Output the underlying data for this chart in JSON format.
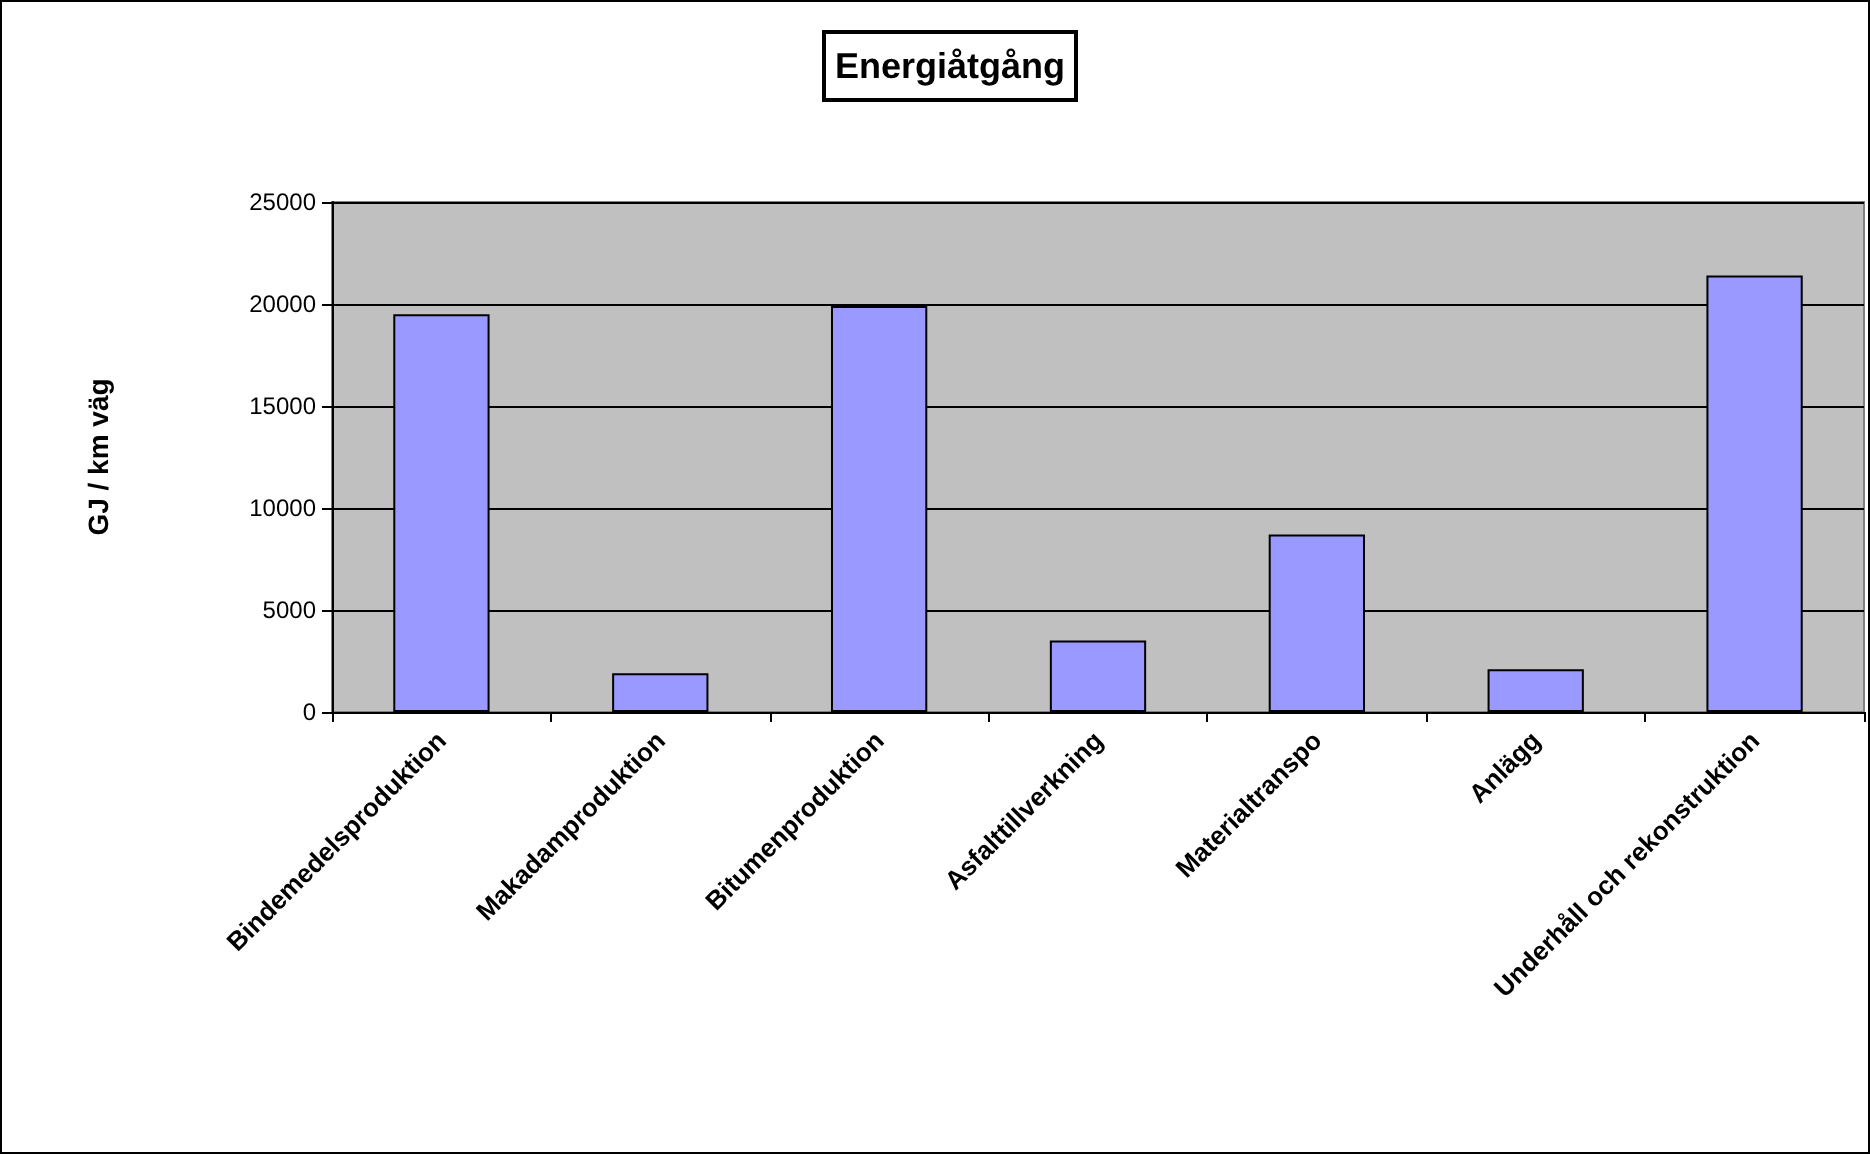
{
  "chart_data": {
    "type": "bar",
    "title": "Energiåtgång",
    "ylabel": "GJ / km väg",
    "categories": [
      "Bindemedelsproduktion",
      "Makadamproduktion",
      "Bitumenproduktion",
      "Asfalttillverkning",
      "Materialtranspo",
      "Anlägg",
      "Underhåll och rekonstruktion"
    ],
    "values": [
      19500,
      1900,
      19900,
      3500,
      8700,
      2100,
      21400
    ],
    "color": "#9999ff",
    "ylim": [
      0,
      25000
    ],
    "yticks": [
      0,
      5000,
      10000,
      15000,
      20000,
      25000
    ],
    "grid": "y"
  }
}
